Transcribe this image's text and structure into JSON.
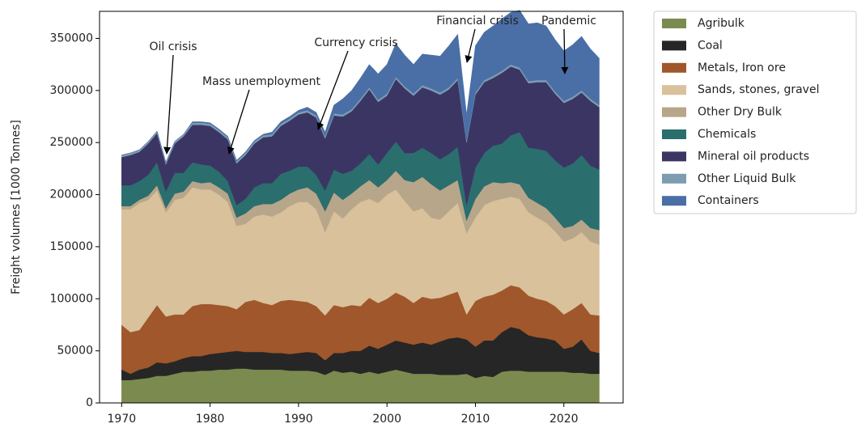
{
  "chart_data": {
    "type": "stacked_area",
    "ylabel": "Freight volumes [1000 Tonnes]",
    "x": [
      1970,
      1971,
      1972,
      1973,
      1974,
      1975,
      1976,
      1977,
      1978,
      1979,
      1980,
      1981,
      1982,
      1983,
      1984,
      1985,
      1986,
      1987,
      1988,
      1989,
      1990,
      1991,
      1992,
      1993,
      1994,
      1995,
      1996,
      1997,
      1998,
      1999,
      2000,
      2001,
      2002,
      2003,
      2004,
      2005,
      2006,
      2007,
      2008,
      2009,
      2010,
      2011,
      2012,
      2013,
      2014,
      2015,
      2016,
      2017,
      2018,
      2019,
      2020,
      2021,
      2022,
      2023,
      2024
    ],
    "xlim": [
      1967.5,
      2026.7
    ],
    "xticks": [
      1970,
      1980,
      1990,
      2000,
      2010,
      2020
    ],
    "ylim": [
      0,
      376000
    ],
    "yticks": [
      0,
      50000,
      100000,
      150000,
      200000,
      250000,
      300000,
      350000
    ],
    "legend": "outside upper right",
    "series": [
      {
        "name": "Agribulk",
        "color": "#7b8b4f",
        "values": [
          22000,
          22000,
          23000,
          24000,
          26000,
          26000,
          28000,
          30000,
          30000,
          31000,
          31000,
          32000,
          32000,
          33000,
          33000,
          32000,
          32000,
          32000,
          32000,
          31000,
          31000,
          31000,
          30000,
          27000,
          31000,
          29000,
          30000,
          28000,
          30000,
          28000,
          30000,
          32000,
          30000,
          28000,
          28000,
          28000,
          27000,
          27000,
          27000,
          28000,
          24000,
          26000,
          25000,
          30000,
          31000,
          31000,
          30000,
          30000,
          30000,
          30000,
          30000,
          29000,
          29000,
          28000,
          28000
        ]
      },
      {
        "name": "Coal",
        "color": "#262626",
        "values": [
          10000,
          6000,
          9000,
          10000,
          13000,
          12000,
          12000,
          13000,
          15000,
          14000,
          16000,
          16000,
          17000,
          17000,
          16000,
          17000,
          17000,
          16000,
          16000,
          16000,
          17000,
          18000,
          18000,
          14000,
          17000,
          19000,
          20000,
          22000,
          25000,
          24000,
          26000,
          28000,
          28000,
          28000,
          30000,
          28000,
          32000,
          35000,
          36000,
          33000,
          30000,
          34000,
          35000,
          38000,
          42000,
          40000,
          35000,
          33000,
          32000,
          30000,
          22000,
          25000,
          32000,
          22000,
          20000
        ]
      },
      {
        "name": "Metals, Iron ore",
        "color": "#a0572b",
        "values": [
          43000,
          40000,
          38000,
          48000,
          55000,
          45000,
          45000,
          42000,
          48000,
          50000,
          48000,
          46000,
          44000,
          40000,
          48000,
          50000,
          47000,
          46000,
          50000,
          52000,
          50000,
          48000,
          45000,
          43000,
          46000,
          44000,
          44000,
          43000,
          46000,
          44000,
          44000,
          46000,
          44000,
          40000,
          44000,
          44000,
          42000,
          42000,
          44000,
          24000,
          44000,
          42000,
          44000,
          40000,
          40000,
          40000,
          38000,
          37000,
          36000,
          33000,
          33000,
          36000,
          35000,
          35000,
          36000
        ]
      },
      {
        "name": "Sands, stones, gravel",
        "color": "#d8c19b",
        "values": [
          111000,
          118000,
          122000,
          113000,
          110000,
          100000,
          110000,
          112000,
          114000,
          110000,
          110000,
          106000,
          100000,
          80000,
          75000,
          80000,
          85000,
          85000,
          85000,
          90000,
          95000,
          96000,
          93000,
          80000,
          90000,
          85000,
          92000,
          100000,
          95000,
          96000,
          100000,
          99000,
          92000,
          88000,
          85000,
          78000,
          75000,
          80000,
          85000,
          78000,
          80000,
          88000,
          90000,
          88000,
          85000,
          85000,
          80000,
          78000,
          75000,
          72000,
          70000,
          68000,
          68000,
          70000,
          68000
        ]
      },
      {
        "name": "Other Dry Bulk",
        "color": "#b8a68a",
        "values": [
          3000,
          3000,
          3000,
          4000,
          5000,
          4000,
          6000,
          6000,
          6000,
          6000,
          7000,
          7000,
          8000,
          8000,
          10000,
          10000,
          10000,
          12000,
          12000,
          12000,
          12000,
          14000,
          15000,
          20000,
          18000,
          18000,
          15000,
          15000,
          18000,
          15000,
          14000,
          18000,
          20000,
          28000,
          30000,
          32000,
          28000,
          25000,
          22000,
          12000,
          18000,
          18000,
          18000,
          15000,
          14000,
          14000,
          14000,
          14000,
          14000,
          13000,
          13000,
          12000,
          12000,
          13000,
          14000
        ]
      },
      {
        "name": "Chemicals",
        "color": "#2b6e6e",
        "values": [
          20000,
          20000,
          18000,
          20000,
          22000,
          16000,
          20000,
          18000,
          18000,
          18000,
          16000,
          15000,
          12000,
          12000,
          14000,
          18000,
          20000,
          20000,
          25000,
          22000,
          22000,
          20000,
          18000,
          20000,
          22000,
          25000,
          22000,
          22000,
          25000,
          22000,
          26000,
          28000,
          26000,
          28000,
          28000,
          30000,
          30000,
          30000,
          32000,
          15000,
          30000,
          32000,
          35000,
          38000,
          45000,
          50000,
          48000,
          52000,
          55000,
          55000,
          58000,
          60000,
          62000,
          60000,
          58000
        ]
      },
      {
        "name": "Mineral oil products",
        "color": "#3b3564",
        "values": [
          27000,
          29000,
          28000,
          30000,
          28000,
          26000,
          28000,
          35000,
          36000,
          38000,
          38000,
          38000,
          40000,
          40000,
          42000,
          42000,
          44000,
          45000,
          46000,
          48000,
          50000,
          52000,
          55000,
          50000,
          52000,
          55000,
          57000,
          60000,
          62000,
          60000,
          55000,
          60000,
          62000,
          55000,
          58000,
          60000,
          62000,
          62000,
          64000,
          60000,
          70000,
          68000,
          65000,
          68000,
          66000,
          60000,
          62000,
          64000,
          66000,
          64000,
          62000,
          62000,
          60000,
          62000,
          60000
        ]
      },
      {
        "name": "Other Liquid Bulk",
        "color": "#7d9cb1",
        "values": [
          2000,
          2000,
          2000,
          2000,
          2000,
          2000,
          2000,
          2000,
          2000,
          2000,
          2000,
          2000,
          2000,
          2000,
          2000,
          2000,
          2000,
          2000,
          2000,
          2000,
          2000,
          2000,
          2000,
          2000,
          2000,
          2000,
          2000,
          2000,
          2000,
          2000,
          2000,
          2000,
          2000,
          2000,
          2000,
          2000,
          2000,
          2000,
          2000,
          2000,
          2000,
          2000,
          2000,
          2000,
          2000,
          2000,
          2000,
          2000,
          2000,
          2000,
          2000,
          2000,
          2000,
          2000,
          2000
        ]
      },
      {
        "name": "Containers",
        "color": "#4a6fa6",
        "values": [
          0,
          0,
          0,
          0,
          0,
          0,
          0,
          0,
          1000,
          1000,
          1000,
          1000,
          1000,
          1000,
          1000,
          1000,
          1000,
          2000,
          2000,
          2000,
          2000,
          3000,
          3000,
          4000,
          8000,
          15000,
          18000,
          20000,
          22000,
          25000,
          28000,
          32000,
          30000,
          28000,
          30000,
          32000,
          35000,
          40000,
          42000,
          25000,
          45000,
          46000,
          48000,
          50000,
          50000,
          55000,
          55000,
          55000,
          52000,
          50000,
          48000,
          50000,
          52000,
          48000,
          45000
        ]
      }
    ],
    "annotations": [
      "Oil crisis",
      "Mass unemployment",
      "Currency crisis",
      "Financial crisis",
      "Pandemic"
    ]
  }
}
